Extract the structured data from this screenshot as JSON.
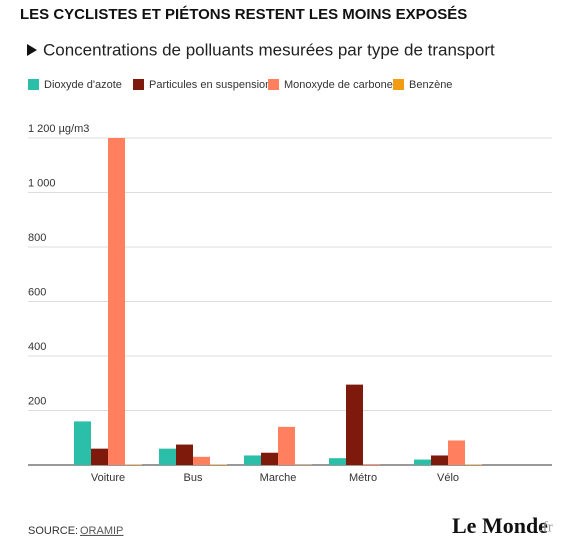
{
  "chart_data": {
    "type": "bar",
    "title": "LES CYCLISTES ET PIÉTONS RESTENT LES MOINS EXPOSÉS",
    "subtitle": "Concentrations de polluants mesurées par type de transport",
    "categories": [
      "Voiture",
      "Bus",
      "Marche",
      "Métro",
      "Vélo"
    ],
    "series": [
      {
        "name": "Dioxyde d'azote",
        "color": "#2bbfaa",
        "values": [
          160,
          60,
          35,
          25,
          20
        ]
      },
      {
        "name": "Particules en suspension",
        "color": "#7d1a0c",
        "values": [
          60,
          75,
          45,
          295,
          35
        ]
      },
      {
        "name": "Monoxyde de carbone",
        "color": "#ff7f5e",
        "values": [
          1200,
          30,
          140,
          3,
          90
        ]
      },
      {
        "name": "Benzène",
        "color": "#f39c12",
        "values": [
          2,
          2,
          1,
          0,
          2
        ]
      }
    ],
    "ylim": [
      0,
      1200
    ],
    "yticks": [
      200,
      400,
      600,
      800,
      {
        "value": 1000,
        "label": "1 000"
      },
      {
        "value": 1200,
        "label": "1 200 µg/m3"
      }
    ],
    "grid": true,
    "source_label": "SOURCE:",
    "source_link": "ORAMIP",
    "logo": "Le Monde",
    "logo_suffix": ".fr"
  }
}
